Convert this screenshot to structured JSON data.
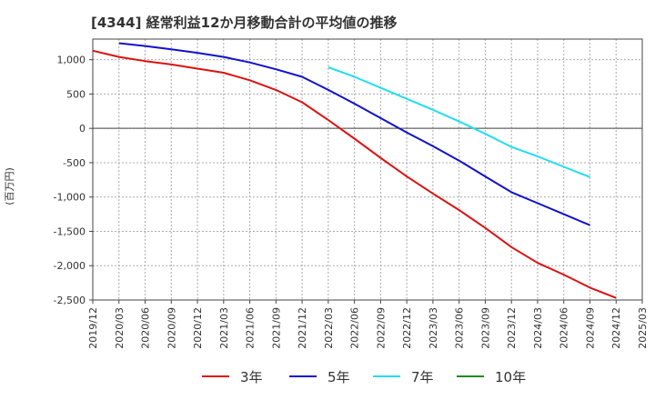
{
  "chart_data": {
    "type": "line",
    "title": "[4344]  経常利益12か月移動合計の平均値の推移",
    "ylabel": "(百万円)",
    "xlabel": "",
    "ylim": [
      -2500,
      1300
    ],
    "yticks": [
      1000,
      500,
      0,
      -500,
      -1000,
      -1500,
      -2000,
      -2500
    ],
    "ytick_labels": [
      "1,000",
      "500",
      "0",
      "-500",
      "-1,000",
      "-1,500",
      "-2,000",
      "-2,500"
    ],
    "x_categories": [
      "2019/12",
      "2020/03",
      "2020/06",
      "2020/09",
      "2020/12",
      "2021/03",
      "2021/06",
      "2021/09",
      "2021/12",
      "2022/03",
      "2022/06",
      "2022/09",
      "2022/12",
      "2023/03",
      "2023/06",
      "2023/09",
      "2023/12",
      "2024/03",
      "2024/06",
      "2024/09",
      "2024/12",
      "2025/03"
    ],
    "grid": true,
    "legend_position": "bottom",
    "series": [
      {
        "name": "3年",
        "color": "#dd1111",
        "start": "2019/12",
        "values": [
          1130,
          1040,
          980,
          930,
          870,
          810,
          700,
          560,
          380,
          120,
          -150,
          -430,
          -700,
          -950,
          -1190,
          -1450,
          -1730,
          -1960,
          -2130,
          -2320,
          -2470
        ]
      },
      {
        "name": "5年",
        "color": "#1111cc",
        "start": "2020/03",
        "values": [
          1240,
          1200,
          1150,
          1100,
          1040,
          960,
          860,
          750,
          560,
          360,
          150,
          -60,
          -260,
          -470,
          -700,
          -930,
          -1090,
          -1250,
          -1410
        ]
      },
      {
        "name": "7年",
        "color": "#22ddee",
        "start": "2022/03",
        "values": [
          890,
          750,
          590,
          430,
          270,
          100,
          -80,
          -270,
          -410,
          -560,
          -710
        ]
      },
      {
        "name": "10年",
        "color": "#228822",
        "start": "",
        "values": []
      }
    ]
  }
}
